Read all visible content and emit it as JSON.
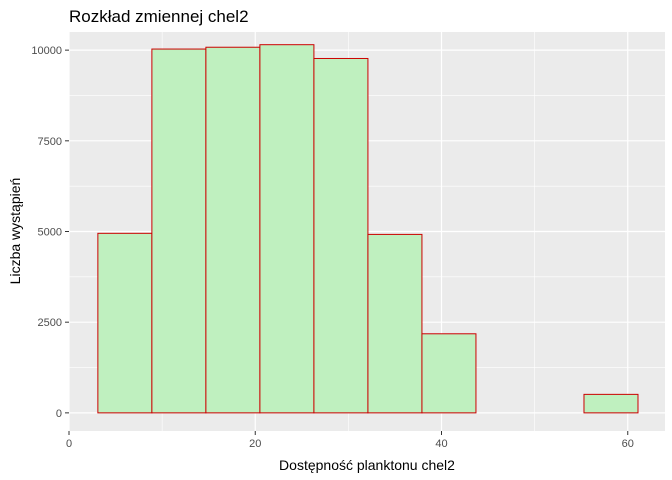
{
  "chart_data": {
    "type": "bar",
    "title": "Rozkład zmiennej chel2",
    "xlabel": "Dostępność planktonu chel2",
    "ylabel": "Liczba wystąpień",
    "xlim": [
      0,
      64
    ],
    "ylim": [
      -500,
      10500
    ],
    "x_ticks": [
      0,
      20,
      40,
      60
    ],
    "y_ticks": [
      0,
      2500,
      5000,
      7500,
      10000
    ],
    "x_tick_labels": [
      "0",
      "20",
      "40",
      "60"
    ],
    "y_tick_labels": [
      "0",
      "2500",
      "5000",
      "7500",
      "10000"
    ],
    "bins": [
      {
        "start": 3.1,
        "end": 8.9,
        "count": 4950
      },
      {
        "start": 8.9,
        "end": 14.7,
        "count": 10030
      },
      {
        "start": 14.7,
        "end": 20.5,
        "count": 10080
      },
      {
        "start": 20.5,
        "end": 26.3,
        "count": 10150
      },
      {
        "start": 26.3,
        "end": 32.1,
        "count": 9770
      },
      {
        "start": 32.1,
        "end": 37.9,
        "count": 4920
      },
      {
        "start": 37.9,
        "end": 43.7,
        "count": 2180
      },
      {
        "start": 43.7,
        "end": 49.5,
        "count": 0
      },
      {
        "start": 49.5,
        "end": 55.3,
        "count": 0
      },
      {
        "start": 55.3,
        "end": 61.1,
        "count": 510
      }
    ],
    "colors": {
      "fill": "#bff0bf",
      "stroke": "#cc0000",
      "panel": "#ebebeb",
      "grid": "#ffffff"
    },
    "grid": true
  }
}
